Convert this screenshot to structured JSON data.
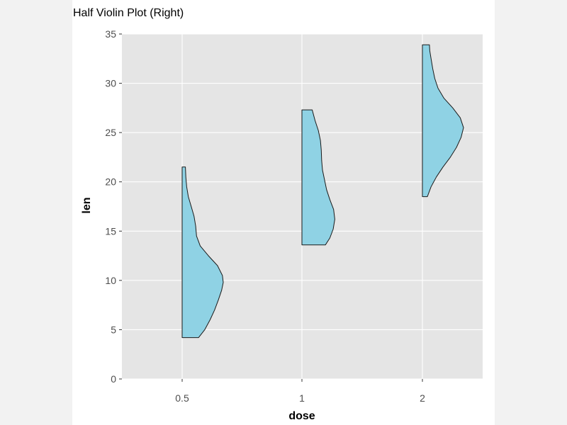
{
  "chart_data": {
    "type": "half-violin",
    "title": "Half Violin Plot (Right)",
    "xlabel": "dose",
    "ylabel": "len",
    "categories": [
      "0.5",
      "1",
      "2"
    ],
    "ylim": [
      0,
      35
    ],
    "yticks": [
      0,
      5,
      10,
      15,
      20,
      25,
      30,
      35
    ],
    "grid": true,
    "fill_color": "#8fd2e4",
    "outline_color": "#1a1a1a",
    "panel_color": "#e5e5e5",
    "violins": [
      {
        "category": "0.5",
        "min": 4.2,
        "max": 21.5,
        "density": [
          [
            4.2,
            0.4
          ],
          [
            5.0,
            0.55
          ],
          [
            6.0,
            0.68
          ],
          [
            7.0,
            0.79
          ],
          [
            8.0,
            0.88
          ],
          [
            9.0,
            0.96
          ],
          [
            9.8,
            1.0
          ],
          [
            10.5,
            0.98
          ],
          [
            11.5,
            0.86
          ],
          [
            12.5,
            0.64
          ],
          [
            13.5,
            0.44
          ],
          [
            14.5,
            0.35
          ],
          [
            15.5,
            0.33
          ],
          [
            16.5,
            0.29
          ],
          [
            17.5,
            0.22
          ],
          [
            18.5,
            0.15
          ],
          [
            19.5,
            0.11
          ],
          [
            20.5,
            0.09
          ],
          [
            21.5,
            0.08
          ]
        ]
      },
      {
        "category": "1",
        "min": 13.6,
        "max": 27.3,
        "density": [
          [
            13.6,
            0.57
          ],
          [
            14.3,
            0.68
          ],
          [
            15.2,
            0.76
          ],
          [
            16.2,
            0.8
          ],
          [
            17.2,
            0.77
          ],
          [
            18.2,
            0.68
          ],
          [
            19.2,
            0.6
          ],
          [
            20.2,
            0.55
          ],
          [
            21.2,
            0.5
          ],
          [
            22.2,
            0.48
          ],
          [
            23.2,
            0.47
          ],
          [
            24.2,
            0.45
          ],
          [
            25.2,
            0.4
          ],
          [
            26.2,
            0.32
          ],
          [
            27.3,
            0.25
          ]
        ]
      },
      {
        "category": "2",
        "min": 18.5,
        "max": 33.9,
        "density": [
          [
            18.5,
            0.12
          ],
          [
            19.5,
            0.21
          ],
          [
            20.5,
            0.34
          ],
          [
            21.5,
            0.5
          ],
          [
            22.5,
            0.68
          ],
          [
            23.5,
            0.83
          ],
          [
            24.5,
            0.94
          ],
          [
            25.5,
            1.0
          ],
          [
            26.5,
            0.92
          ],
          [
            27.5,
            0.74
          ],
          [
            28.5,
            0.52
          ],
          [
            29.5,
            0.38
          ],
          [
            30.5,
            0.3
          ],
          [
            31.5,
            0.25
          ],
          [
            32.5,
            0.21
          ],
          [
            33.3,
            0.18
          ],
          [
            33.9,
            0.17
          ]
        ]
      }
    ]
  }
}
